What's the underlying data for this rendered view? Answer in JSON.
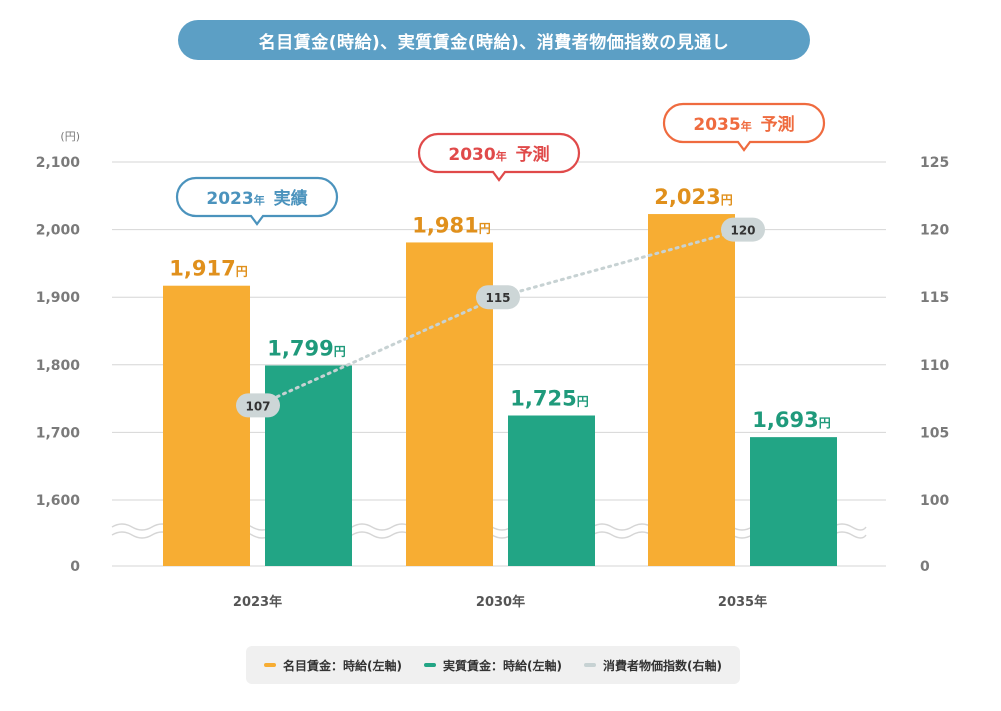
{
  "title": "名目賃金(時給)、実質賃金(時給)、消費者物価指数の見通し",
  "colors": {
    "nominal": "#f7ad33",
    "nominal_text": "#e0901c",
    "real": "#22a585",
    "real_text": "#1f9a7b",
    "cpi": "#c7d2d3",
    "cpi_label": "#cdd6d7",
    "callout_actual": "#4b93bd",
    "callout_forecast_2030": "#e04a4a",
    "callout_forecast_2035": "#ef6b3f",
    "grid": "#d6d6d6",
    "axis_text": "#7a7a7a"
  },
  "left_axis": {
    "unit": "(円)",
    "ticks": [
      "2,100",
      "2,000",
      "1,900",
      "1,800",
      "1,700",
      "1,600",
      "0"
    ]
  },
  "right_axis": {
    "ticks": [
      "125",
      "120",
      "115",
      "110",
      "105",
      "100",
      "0"
    ]
  },
  "legend": [
    {
      "label": "名目賃金：時給(左軸)",
      "color": "#f7ad33"
    },
    {
      "label": "実質賃金：時給(左軸)",
      "color": "#22a585"
    },
    {
      "label": "消費者物価指数(右軸)",
      "color": "#c7d2d3"
    }
  ],
  "chart_data": {
    "type": "bar",
    "categories": [
      "2023年",
      "2030年",
      "2035年"
    ],
    "series": [
      {
        "name": "名目賃金：時給(左軸)",
        "values": [
          1917,
          1981,
          2023
        ],
        "axis": "left"
      },
      {
        "name": "実質賃金：時給(左軸)",
        "values": [
          1799,
          1725,
          1693
        ],
        "axis": "left"
      },
      {
        "name": "消費者物価指数(右軸)",
        "values": [
          107,
          115,
          120
        ],
        "axis": "right",
        "type": "line"
      }
    ],
    "nominal_labels": [
      "1,917",
      "1,981",
      "2,023"
    ],
    "real_labels": [
      "1,799",
      "1,725",
      "1,693"
    ],
    "cpi_labels": [
      "107",
      "115",
      "120"
    ],
    "yen_suffix": "円",
    "callouts": [
      {
        "year": "2023",
        "suffix": "年",
        "tag": "実績"
      },
      {
        "year": "2030",
        "suffix": "年",
        "tag": "予測"
      },
      {
        "year": "2035",
        "suffix": "年",
        "tag": "予測"
      }
    ],
    "left_ylim": [
      1600,
      2100
    ],
    "right_ylim": [
      100,
      125
    ],
    "axis_break": true,
    "grid": true,
    "legend_position": "bottom"
  }
}
